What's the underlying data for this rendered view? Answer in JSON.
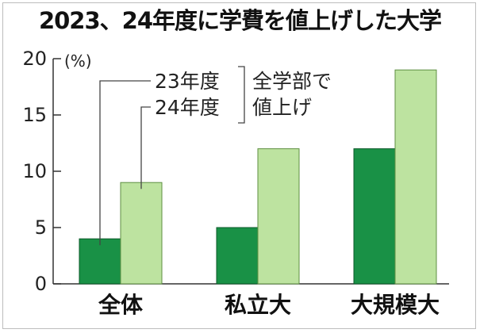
{
  "chart_data": {
    "type": "bar",
    "title": "2023、24年度に学費を値上げした大学",
    "unit_label": "(%)",
    "categories": [
      "全体",
      "私立大",
      "大規模大"
    ],
    "series": [
      {
        "name": "23年度",
        "values": [
          4,
          5,
          12
        ]
      },
      {
        "name": "24年度",
        "values": [
          9,
          12,
          19
        ]
      }
    ],
    "yticks": [
      0,
      5,
      10,
      15,
      20
    ],
    "ylim": [
      0,
      20
    ],
    "annotation": {
      "series_label_23": "23年度",
      "series_label_24": "24年度",
      "group_line1": "全学部で",
      "group_line2": "値上げ"
    },
    "colors": {
      "series_23": "#199146",
      "series_24": "#bde3a0",
      "axis": "#333333"
    }
  }
}
